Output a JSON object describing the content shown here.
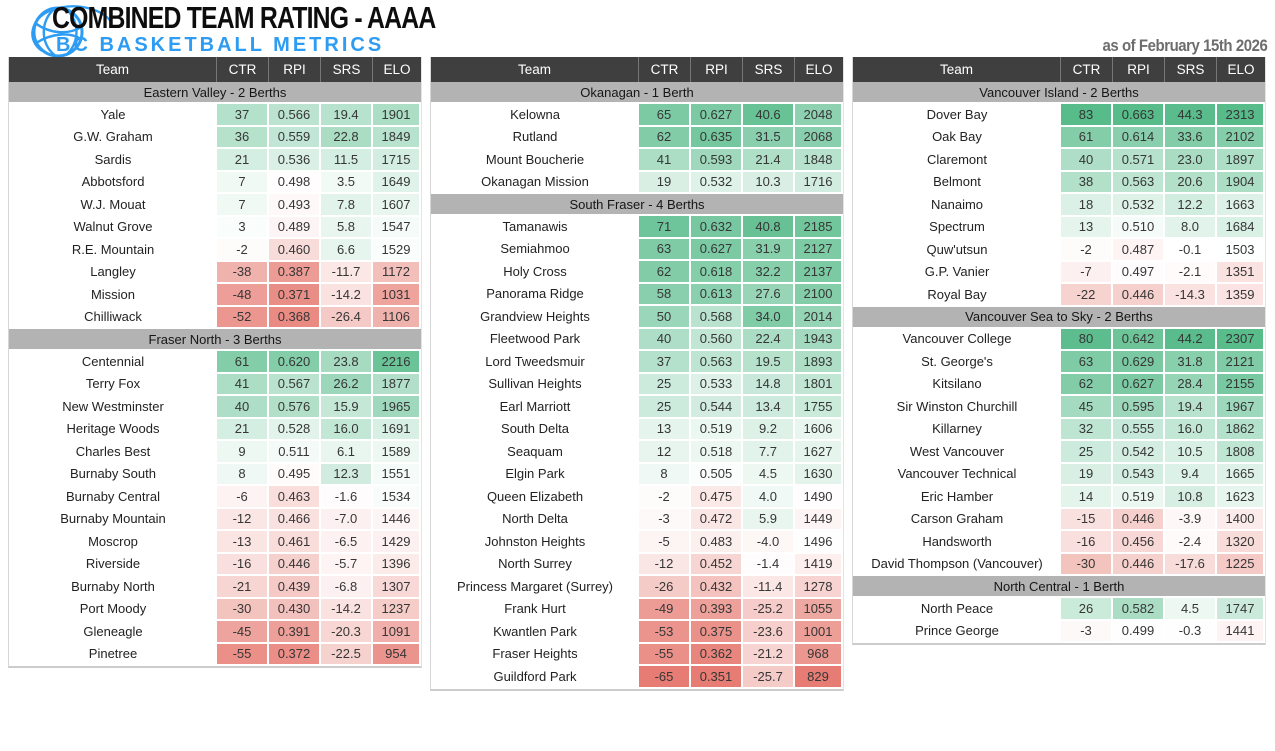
{
  "header": {
    "title": "COMBINED TEAM RATING - AAAA",
    "subtitle": "BC BASKETBALL METRICS",
    "as_of": "as of February 15th 2026",
    "brand_blue": "#2d9cf2",
    "title_color": "#0d0d0d",
    "date_color": "#6d6d6d"
  },
  "chart_data": {
    "type": "table",
    "title": "COMBINED TEAM RATING - AAAA",
    "subtitle": "BC BASKETBALL METRICS",
    "as_of": "as of February 15th 2026",
    "columns": [
      "Team",
      "CTR",
      "RPI",
      "SRS",
      "ELO"
    ],
    "heatmap": {
      "green": "#57bb8a",
      "red": "#e67c73",
      "scales": {
        "ctr": {
          "min": -65,
          "mid": 0,
          "max": 83
        },
        "rpi": {
          "min": 0.351,
          "mid": 0.5,
          "max": 0.663
        },
        "srs": {
          "min": -65,
          "mid": 0,
          "max": 45
        },
        "elo": {
          "min": 829,
          "mid": 1500,
          "max": 2313
        }
      }
    },
    "tables": [
      {
        "sections": [
          {
            "title": "Eastern Valley - 2 Berths",
            "rows": [
              [
                "Yale",
                37,
                "0.566",
                "19.4",
                1901
              ],
              [
                "G.W. Graham",
                36,
                "0.559",
                "22.8",
                1849
              ],
              [
                "Sardis",
                21,
                "0.536",
                "11.5",
                1715
              ],
              [
                "Abbotsford",
                7,
                "0.498",
                "3.5",
                1649
              ],
              [
                "W.J. Mouat",
                7,
                "0.493",
                "7.8",
                1607
              ],
              [
                "Walnut Grove",
                3,
                "0.489",
                "5.8",
                1547
              ],
              [
                "R.E. Mountain",
                -2,
                "0.460",
                "6.6",
                1529
              ],
              [
                "Langley",
                -38,
                "0.387",
                "-11.7",
                1172
              ],
              [
                "Mission",
                -48,
                "0.371",
                "-14.2",
                1031
              ],
              [
                "Chilliwack",
                -52,
                "0.368",
                "-26.4",
                1106
              ]
            ]
          },
          {
            "title": "Fraser North - 3 Berths",
            "rows": [
              [
                "Centennial",
                61,
                "0.620",
                "23.8",
                2216
              ],
              [
                "Terry Fox",
                41,
                "0.567",
                "26.2",
                1877
              ],
              [
                "New Westminster",
                40,
                "0.576",
                "15.9",
                1965
              ],
              [
                "Heritage Woods",
                21,
                "0.528",
                "16.0",
                1691
              ],
              [
                "Charles Best",
                9,
                "0.511",
                "6.1",
                1589
              ],
              [
                "Burnaby South",
                8,
                "0.495",
                "12.3",
                1551
              ],
              [
                "Burnaby Central",
                -6,
                "0.463",
                "-1.6",
                1534
              ],
              [
                "Burnaby Mountain",
                -12,
                "0.466",
                "-7.0",
                1446
              ],
              [
                "Moscrop",
                -13,
                "0.461",
                "-6.5",
                1429
              ],
              [
                "Riverside",
                -16,
                "0.446",
                "-5.7",
                1396
              ],
              [
                "Burnaby North",
                -21,
                "0.439",
                "-6.8",
                1307
              ],
              [
                "Port Moody",
                -30,
                "0.430",
                "-14.2",
                1237
              ],
              [
                "Gleneagle",
                -45,
                "0.391",
                "-20.3",
                1091
              ],
              [
                "Pinetree",
                -55,
                "0.372",
                "-22.5",
                954
              ]
            ]
          }
        ]
      },
      {
        "sections": [
          {
            "title": "Okanagan - 1 Berth",
            "rows": [
              [
                "Kelowna",
                65,
                "0.627",
                "40.6",
                2048
              ],
              [
                "Rutland",
                62,
                "0.635",
                "31.5",
                2068
              ],
              [
                "Mount Boucherie",
                41,
                "0.593",
                "21.4",
                1848
              ],
              [
                "Okanagan Mission",
                19,
                "0.532",
                "10.3",
                1716
              ]
            ]
          },
          {
            "title": "South Fraser - 4 Berths",
            "rows": [
              [
                "Tamanawis",
                71,
                "0.632",
                "40.8",
                2185
              ],
              [
                "Semiahmoo",
                63,
                "0.627",
                "31.9",
                2127
              ],
              [
                "Holy Cross",
                62,
                "0.618",
                "32.2",
                2137
              ],
              [
                "Panorama Ridge",
                58,
                "0.613",
                "27.6",
                2100
              ],
              [
                "Grandview Heights",
                50,
                "0.568",
                "34.0",
                2014
              ],
              [
                "Fleetwood Park",
                40,
                "0.560",
                "22.4",
                1943
              ],
              [
                "Lord Tweedsmuir",
                37,
                "0.563",
                "19.5",
                1893
              ],
              [
                "Sullivan Heights",
                25,
                "0.533",
                "14.8",
                1801
              ],
              [
                "Earl Marriott",
                25,
                "0.544",
                "13.4",
                1755
              ],
              [
                "South Delta",
                13,
                "0.519",
                "9.2",
                1606
              ],
              [
                "Seaquam",
                12,
                "0.518",
                "7.7",
                1627
              ],
              [
                "Elgin Park",
                8,
                "0.505",
                "4.5",
                1630
              ],
              [
                "Queen Elizabeth",
                -2,
                "0.475",
                "4.0",
                1490
              ],
              [
                "North Delta",
                -3,
                "0.472",
                "5.9",
                1449
              ],
              [
                "Johnston Heights",
                -5,
                "0.483",
                "-4.0",
                1496
              ],
              [
                "North Surrey",
                -12,
                "0.452",
                "-1.4",
                1419
              ],
              [
                "Princess Margaret (Surrey)",
                -26,
                "0.432",
                "-11.4",
                1278
              ],
              [
                "Frank Hurt",
                -49,
                "0.393",
                "-25.2",
                1055
              ],
              [
                "Kwantlen Park",
                -53,
                "0.375",
                "-23.6",
                1001
              ],
              [
                "Fraser Heights",
                -55,
                "0.362",
                "-21.2",
                968
              ],
              [
                "Guildford Park",
                -65,
                "0.351",
                "-25.7",
                829
              ]
            ]
          }
        ]
      },
      {
        "sections": [
          {
            "title": "Vancouver Island - 2 Berths",
            "rows": [
              [
                "Dover Bay",
                83,
                "0.663",
                "44.3",
                2313
              ],
              [
                "Oak Bay",
                61,
                "0.614",
                "33.6",
                2102
              ],
              [
                "Claremont",
                40,
                "0.571",
                "23.0",
                1897
              ],
              [
                "Belmont",
                38,
                "0.563",
                "20.6",
                1904
              ],
              [
                "Nanaimo",
                18,
                "0.532",
                "12.2",
                1663
              ],
              [
                "Spectrum",
                13,
                "0.510",
                "8.0",
                1684
              ],
              [
                "Quw'utsun",
                -2,
                "0.487",
                "-0.1",
                1503
              ],
              [
                "G.P. Vanier",
                -7,
                "0.497",
                "-2.1",
                1351
              ],
              [
                "Royal Bay",
                -22,
                "0.446",
                "-14.3",
                1359
              ]
            ]
          },
          {
            "title": "Vancouver Sea to Sky - 2 Berths",
            "rows": [
              [
                "Vancouver College",
                80,
                "0.642",
                "44.2",
                2307
              ],
              [
                "St. George's",
                63,
                "0.629",
                "31.8",
                2121
              ],
              [
                "Kitsilano",
                62,
                "0.627",
                "28.4",
                2155
              ],
              [
                "Sir Winston Churchill",
                45,
                "0.595",
                "19.4",
                1967
              ],
              [
                "Killarney",
                32,
                "0.555",
                "16.0",
                1862
              ],
              [
                "West Vancouver",
                25,
                "0.542",
                "10.5",
                1808
              ],
              [
                "Vancouver Technical",
                19,
                "0.543",
                "9.4",
                1665
              ],
              [
                "Eric Hamber",
                14,
                "0.519",
                "10.8",
                1623
              ],
              [
                "Carson Graham",
                -15,
                "0.446",
                "-3.9",
                1400
              ],
              [
                "Handsworth",
                -16,
                "0.456",
                "-2.4",
                1320
              ],
              [
                "David Thompson (Vancouver)",
                -30,
                "0.446",
                "-17.6",
                1225
              ]
            ]
          },
          {
            "title": "North Central - 1 Berth",
            "rows": [
              [
                "North Peace",
                26,
                "0.582",
                "4.5",
                1747
              ],
              [
                "Prince George",
                -3,
                "0.499",
                "-0.3",
                1441
              ]
            ]
          }
        ]
      }
    ]
  }
}
